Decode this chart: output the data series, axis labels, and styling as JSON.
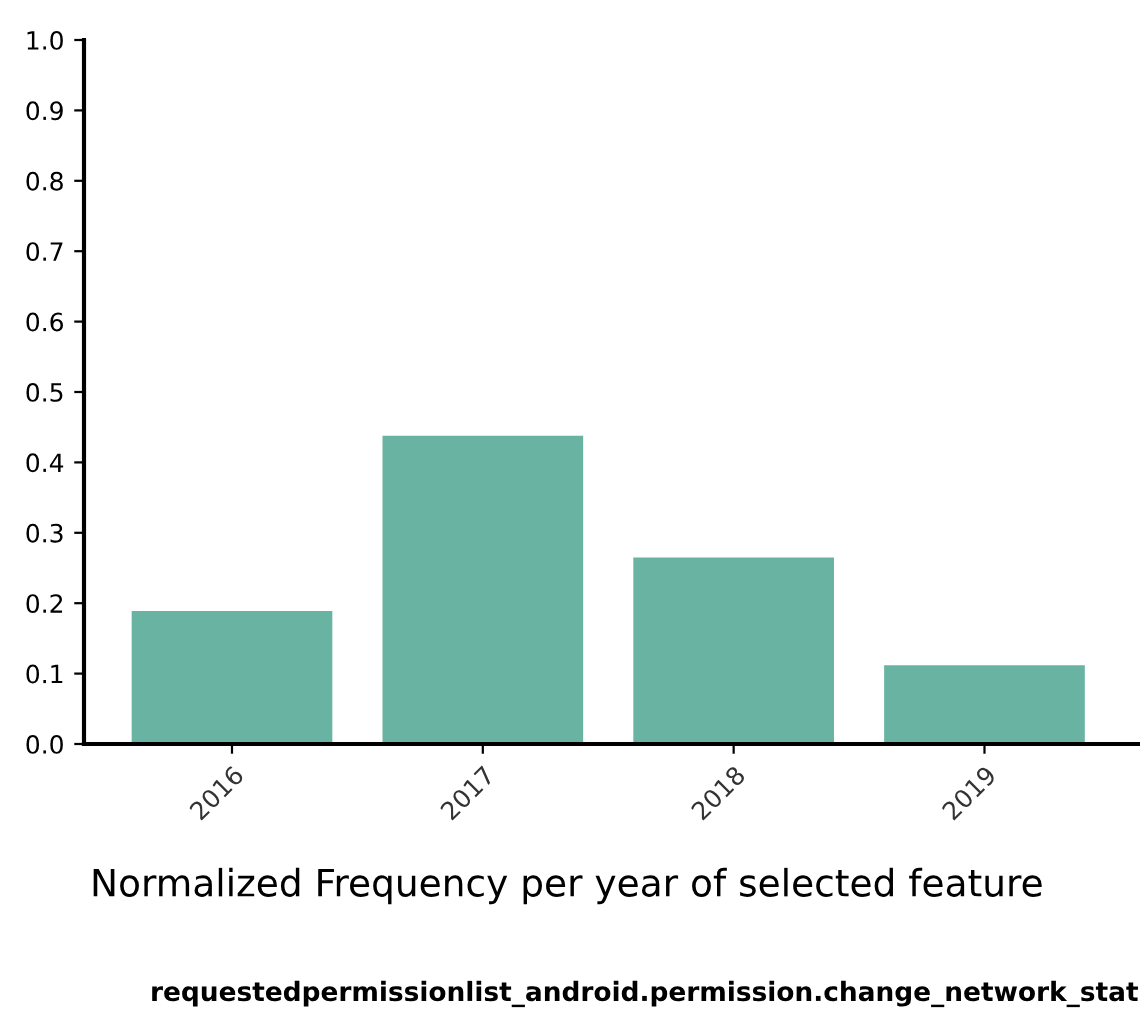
{
  "chart_data": {
    "type": "bar",
    "xlabel": "Normalized Frequency per year of selected feature",
    "annotations": [
      "requestedpermissionlist_android.permission.change_network_stat"
    ],
    "categories": [
      "2016",
      "2017",
      "2018",
      "2019"
    ],
    "values": [
      0.189,
      0.438,
      0.265,
      0.112
    ],
    "color": "#69b3a2",
    "ylim": [
      0,
      1.0
    ],
    "yticks": [
      {
        "value": 0,
        "label": "0.0"
      },
      0.1,
      0.2,
      0.3,
      0.4,
      0.5,
      0.6,
      0.7,
      0.8,
      0.9,
      {
        "value": 1,
        "label": "1.0"
      }
    ],
    "grid": false
  }
}
